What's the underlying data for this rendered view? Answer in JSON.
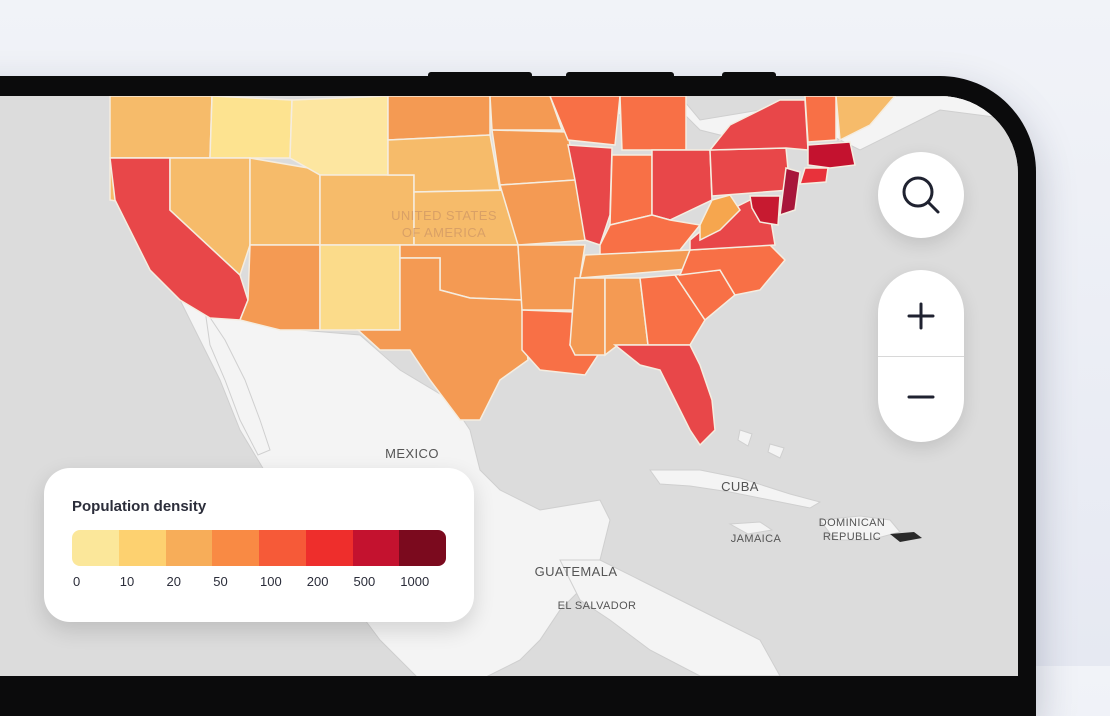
{
  "map": {
    "country_label_line1": "UNITED STATES",
    "country_label_line2": "OF AMERICA",
    "places": {
      "mexico": "MEXICO",
      "cuba": "CUBA",
      "jamaica": "JAMAICA",
      "dominican_line1": "DOMINICAN",
      "dominican_line2": "REPUBLIC",
      "guatemala": "GUATEMALA",
      "el_salvador": "EL SALVADOR"
    }
  },
  "controls": {
    "search_icon": "search-icon",
    "zoom_in_icon": "plus-icon",
    "zoom_out_icon": "minus-icon"
  },
  "legend": {
    "title": "Population density",
    "colors": [
      "#fbe79a",
      "#fdd170",
      "#f7ad59",
      "#f98a44",
      "#f65a38",
      "#ee2e2c",
      "#c4122f",
      "#7b0a1e"
    ],
    "labels": [
      "0",
      "10",
      "20",
      "50",
      "100",
      "200",
      "500",
      "1000"
    ]
  }
}
